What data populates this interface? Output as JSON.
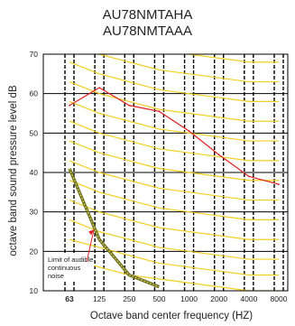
{
  "chart_data": {
    "type": "line",
    "title": "AU78NMTAHA",
    "subtitle": "AU78NMTAAA",
    "xlabel": "Octave band center frequency (HZ)",
    "ylabel": "octave band sound pressure level dB",
    "categories": [
      "63",
      "125",
      "250",
      "500",
      "1000",
      "2000",
      "4000",
      "8000"
    ],
    "ylim": [
      10,
      70
    ],
    "yticks": [
      10,
      20,
      30,
      40,
      50,
      60,
      70
    ],
    "grid": true,
    "series": [
      {
        "values": [
          57,
          61.5,
          57,
          55.5,
          50.5,
          44.5,
          39,
          37
        ],
        "color": "#e02020"
      }
    ],
    "threshold_line": {
      "values": [
        41,
        23,
        14,
        11
      ],
      "color": "#6b6b1e"
    },
    "nc_curve_color": "#f0d020",
    "nc_curves": [
      [
        18,
        16,
        14,
        13,
        12,
        11,
        10,
        10
      ],
      [
        23,
        21,
        19,
        17,
        16,
        15,
        14,
        14
      ],
      [
        28,
        25,
        23,
        21,
        20,
        19,
        18,
        18
      ],
      [
        33,
        30,
        28,
        26,
        25,
        24,
        23,
        23
      ],
      [
        38,
        35,
        33,
        31,
        30,
        29,
        28,
        28
      ],
      [
        43,
        40,
        38,
        36,
        35,
        34,
        33,
        33
      ],
      [
        48,
        45,
        43,
        41,
        40,
        39,
        38,
        38
      ],
      [
        53,
        50,
        48,
        46,
        45,
        44,
        43,
        43
      ],
      [
        58,
        55,
        53,
        51,
        50,
        49,
        48,
        48
      ],
      [
        63,
        60,
        58,
        56,
        55,
        54,
        53,
        53
      ],
      [
        68,
        65,
        63,
        61,
        60,
        59,
        58,
        58
      ],
      [
        73,
        70,
        68,
        66,
        65,
        64,
        63,
        63
      ],
      [
        78,
        75,
        73,
        71,
        70,
        69,
        68,
        68
      ]
    ],
    "annotation": {
      "lines": [
        "Limit of audible",
        "continuous",
        "noise"
      ]
    }
  }
}
